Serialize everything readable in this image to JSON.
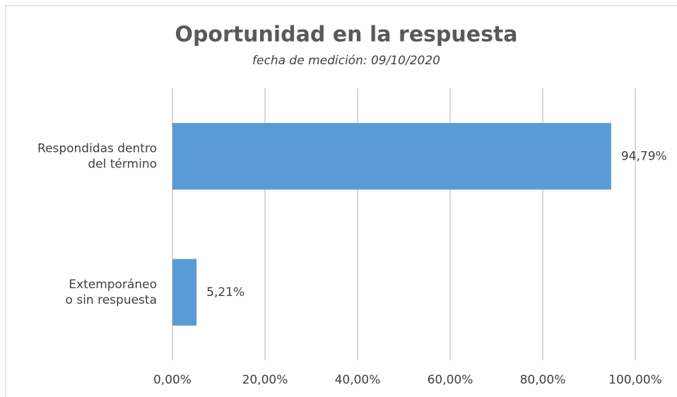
{
  "chart_data": {
    "type": "bar",
    "orientation": "horizontal",
    "title": "Oportunidad en la respuesta",
    "subtitle": "fecha de medición: 09/10/2020",
    "categories": [
      [
        "Respondidas dentro",
        "del término"
      ],
      [
        "Extemporáneo",
        "o sin respuesta"
      ]
    ],
    "values": [
      94.79,
      5.21
    ],
    "value_labels": [
      "94,79%",
      "5,21%"
    ],
    "color": "#5b9bd5",
    "xlim": [
      0,
      100
    ],
    "xticks": [
      {
        "value": 0,
        "label": "0,00%"
      },
      {
        "value": 20,
        "label": "20,00%"
      },
      {
        "value": 40,
        "label": "40,00%"
      },
      {
        "value": 60,
        "label": "60,00%"
      },
      {
        "value": 80,
        "label": "80,00%"
      },
      {
        "value": 100,
        "label": "100,00%"
      }
    ],
    "grid": true
  }
}
